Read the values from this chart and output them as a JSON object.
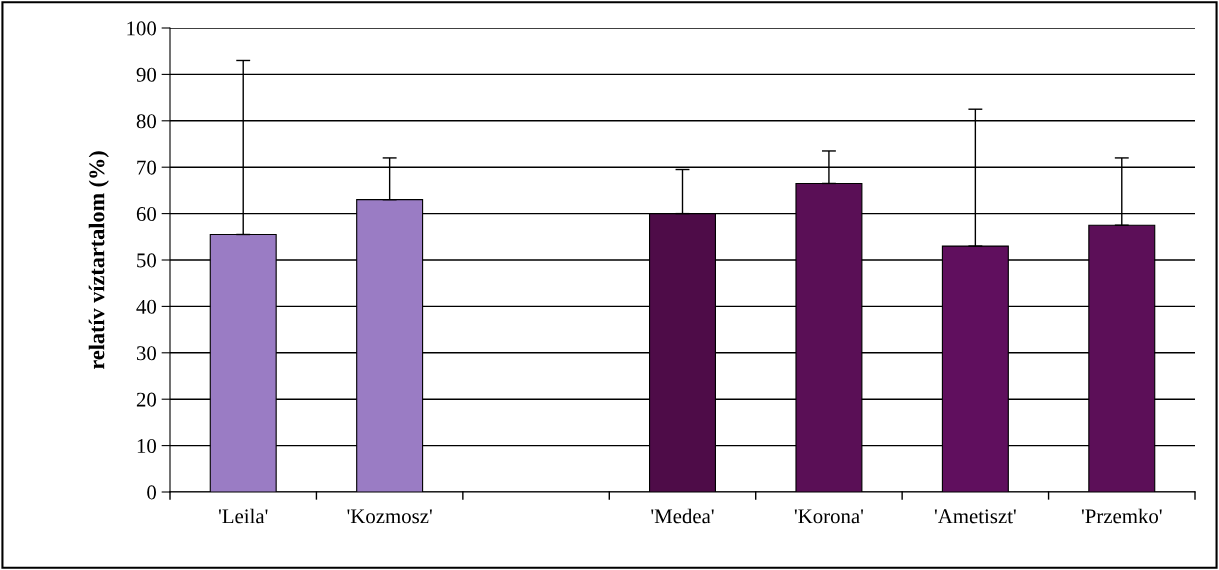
{
  "chart_data": {
    "type": "bar",
    "ylabel": "relatív víztartalom (%)",
    "categories": [
      "'Leila'",
      "'Kozmosz'",
      null,
      "'Medea'",
      "'Korona'",
      "'Ametiszt'",
      "'Przemko'"
    ],
    "values": [
      55.5,
      63,
      null,
      60,
      66.5,
      53,
      57.5
    ],
    "errors": [
      [
        55.5,
        93
      ],
      [
        63,
        72
      ],
      null,
      [
        60,
        69.5
      ],
      [
        66.5,
        73.5
      ],
      [
        53,
        82.5
      ],
      [
        57.5,
        72
      ]
    ],
    "colors": [
      "#9a7cc4",
      "#9a7cc4",
      null,
      "#4e0c48",
      "#5a0f56",
      "#600f5e",
      "#5c0f58"
    ],
    "ylim": [
      0,
      100
    ],
    "yticks": [
      0,
      10,
      20,
      30,
      40,
      50,
      60,
      70,
      80,
      90,
      100
    ],
    "grid": "y",
    "legend": false
  }
}
